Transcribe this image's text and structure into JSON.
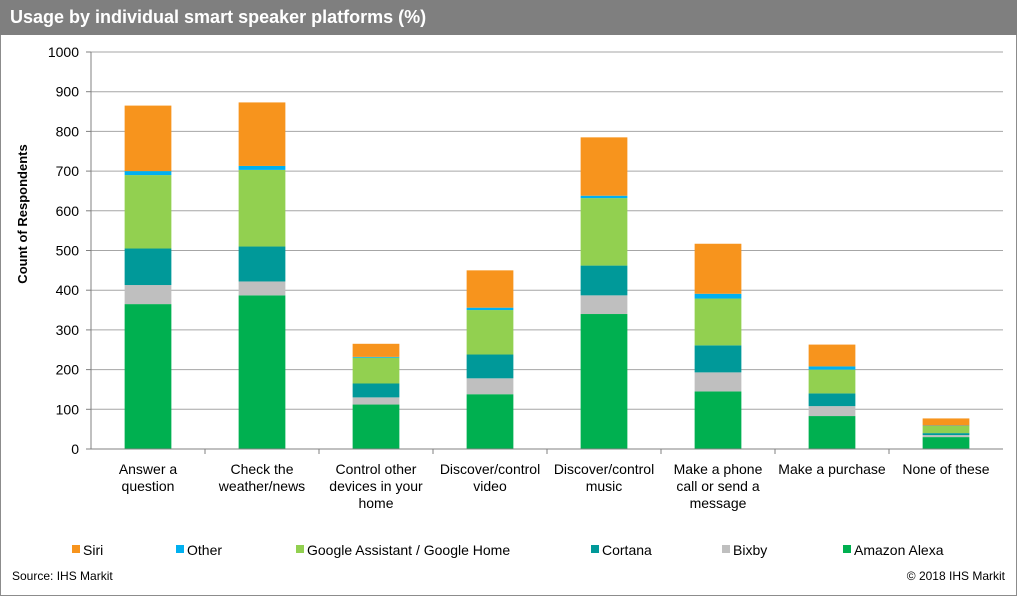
{
  "header": {
    "title": "Usage by individual smart speaker platforms (%)"
  },
  "footer": {
    "source": "Source: IHS Markit",
    "copyright": "© 2018 IHS Markit"
  },
  "chart_data": {
    "type": "bar",
    "stacked": true,
    "ylabel": "Count of Respondents",
    "xlabel": "",
    "ylim": [
      0,
      1000
    ],
    "yticks": [
      0,
      100,
      200,
      300,
      400,
      500,
      600,
      700,
      800,
      900,
      1000
    ],
    "grid": true,
    "legend_position": "bottom",
    "categories": [
      [
        "Answer a",
        "question"
      ],
      [
        "Check the",
        "weather/news"
      ],
      [
        "Control other",
        "devices in your",
        "home"
      ],
      [
        "Discover/control",
        "video"
      ],
      [
        "Discover/control",
        "music"
      ],
      [
        "Make a phone",
        "call or send a",
        "message"
      ],
      [
        "Make a purchase"
      ],
      [
        "None of these"
      ]
    ],
    "series": [
      {
        "name": "Amazon Alexa",
        "color": "#00b050",
        "values": [
          365,
          387,
          112,
          138,
          340,
          145,
          83,
          30
        ]
      },
      {
        "name": "Bixby",
        "color": "#bfbfbf",
        "values": [
          48,
          35,
          18,
          40,
          47,
          48,
          25,
          5
        ]
      },
      {
        "name": "Cortana",
        "color": "#009999",
        "values": [
          92,
          88,
          35,
          60,
          75,
          68,
          32,
          5
        ]
      },
      {
        "name": "Google Assistant / Google Home",
        "color": "#92d050",
        "values": [
          185,
          193,
          65,
          112,
          170,
          118,
          60,
          18
        ]
      },
      {
        "name": "Other",
        "color": "#00b0f0",
        "values": [
          10,
          10,
          2,
          6,
          6,
          12,
          8,
          1
        ]
      },
      {
        "name": "Siri",
        "color": "#f7941d",
        "values": [
          165,
          160,
          33,
          94,
          147,
          126,
          55,
          18
        ]
      }
    ],
    "legend_order": [
      "Siri",
      "Other",
      "Google Assistant / Google Home",
      "Cortana",
      "Bixby",
      "Amazon Alexa"
    ]
  }
}
